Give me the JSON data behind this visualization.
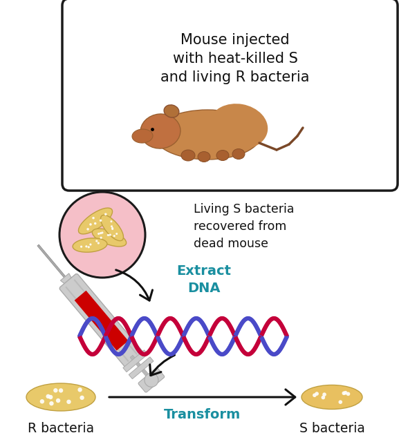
{
  "bg_color": "#ffffff",
  "box_text": "Mouse injected\nwith heat-killed S\nand living R bacteria",
  "box_color": "#ffffff",
  "box_border": "#1a1a1a",
  "bacteria_circle_color": "#f5bfc8",
  "bacteria_circle_border": "#1a1a1a",
  "bacteria_color": "#e8c96a",
  "extract_text": "Extract\nDNA",
  "extract_color": "#1a8fa0",
  "transform_text": "Transform",
  "transform_color": "#1a8fa0",
  "r_bacteria_label": "R bacteria",
  "s_bacteria_label": "S bacteria",
  "dna_color1": "#c4003a",
  "dna_color2": "#4a4ac8",
  "arrow_color": "#111111",
  "label_color": "#111111",
  "syringe_body_color": "#cccccc",
  "syringe_liquid_color": "#cc0000",
  "mouse_body_color": "#c8874a",
  "mouse_dark_color": "#8a5a28"
}
